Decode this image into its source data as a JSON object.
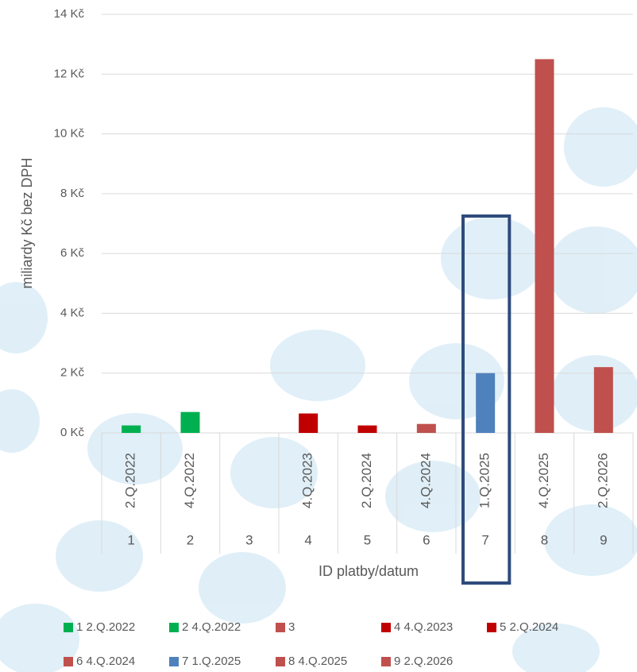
{
  "chart_data": {
    "type": "bar",
    "y_label": "miliardy Kč bez DPH",
    "x_label": "ID platby/datum",
    "categories": [
      "1",
      "2",
      "3",
      "4",
      "5",
      "6",
      "7",
      "8",
      "9"
    ],
    "sublabels": [
      "2.Q.2022",
      "4.Q.2022",
      null,
      "4.Q.2023",
      "2.Q.2024",
      "4.Q.2024",
      "1.Q.2025",
      "4.Q.2025",
      "2.Q.2026"
    ],
    "values": [
      0.25,
      0.7,
      0,
      0.65,
      0.25,
      0.3,
      2.0,
      12.5,
      2.2
    ],
    "colors": [
      "#00b050",
      "#00b050",
      "#c0504d",
      "#c00000",
      "#c00000",
      "#c0504d",
      "#4f81bd",
      "#c0504d",
      "#c0504d"
    ],
    "legend": [
      "1 2.Q.2022",
      "2 4.Q.2022",
      "3",
      "4 4.Q.2023",
      "5 2.Q.2024",
      "6 4.Q.2024",
      "7 1.Q.2025",
      "8 4.Q.2025",
      "9 2.Q.2026"
    ],
    "ylim": [
      0,
      14
    ],
    "yticks": [
      {
        "value": 0,
        "label": "0 Kč"
      },
      {
        "value": 2,
        "label": "2 Kč"
      },
      {
        "value": 4,
        "label": "4 Kč"
      },
      {
        "value": 6,
        "label": "6 Kč"
      },
      {
        "value": 8,
        "label": "8 Kč"
      },
      {
        "value": 10,
        "label": "10 Kč"
      },
      {
        "value": 12,
        "label": "12 Kč"
      },
      {
        "value": 14,
        "label": "14 Kč"
      }
    ],
    "grid": true,
    "highlight_category": 6
  }
}
